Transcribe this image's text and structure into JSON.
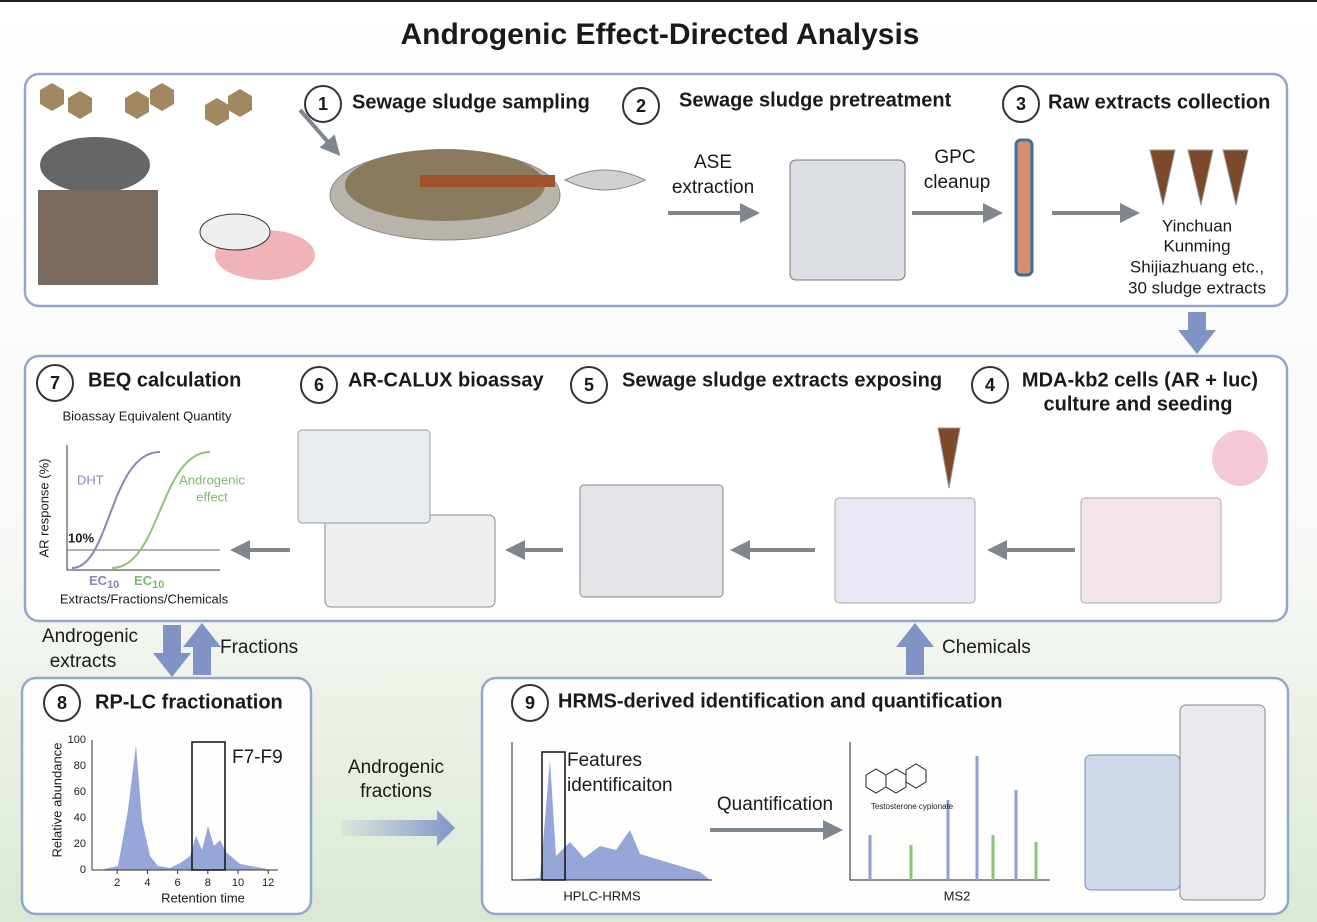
{
  "title": "Androgenic Effect-Directed Analysis",
  "steps": [
    {
      "number": 1,
      "label": "Sewage sludge sampling"
    },
    {
      "number": 2,
      "label": "Sewage sludge pretreatment"
    },
    {
      "number": 3,
      "label": "Raw extracts collection"
    },
    {
      "number": 4,
      "label": [
        "MDA-kb2 cells (AR + luc)",
        "culture and seeding"
      ]
    },
    {
      "number": 5,
      "label": "Sewage sludge extracts exposing"
    },
    {
      "number": 6,
      "label": "AR-CALUX bioassay"
    },
    {
      "number": 7,
      "label": "BEQ calculation"
    },
    {
      "number": 8,
      "label": "RP-LC fractionation"
    },
    {
      "number": 9,
      "label": "HRMS-derived identification and quantification"
    }
  ],
  "ase": [
    "ASE",
    "extraction"
  ],
  "gpc": [
    "GPC",
    "cleanup"
  ],
  "extracts": [
    "Yinchuan",
    "Kunming",
    "Shijiazhuang etc.,",
    "30 sludge extracts"
  ],
  "beq": {
    "subtitle": "Bioassay Equivalent Quantity",
    "y_label": "AR response (%)",
    "dht": "DHT",
    "effect": [
      "Androgenic",
      "effect"
    ],
    "threshold": "10%",
    "ec_main": "EC",
    "ec_sub": "10",
    "x_label": "Extracts/Fractions/Chemicals"
  },
  "flows": {
    "down": [
      "Androgenic",
      "extracts"
    ],
    "up": "Fractions",
    "chemicals": "Chemicals",
    "fractions": [
      "Androgenic",
      "fractions"
    ],
    "quantification": "Quantification"
  },
  "chromatogram": {
    "y_label": "Relative abundance",
    "yticks": [
      0,
      20,
      40,
      60,
      80,
      100
    ],
    "xticks": [
      2,
      4,
      6,
      8,
      10,
      12
    ],
    "x_label": "Retention time",
    "box": "F7-F9"
  },
  "hrms": {
    "features": [
      "Features",
      "identificaiton"
    ],
    "instrument": "HPLC-HRMS",
    "compound": "Testosterone cypionate",
    "ms2": "MS2"
  }
}
